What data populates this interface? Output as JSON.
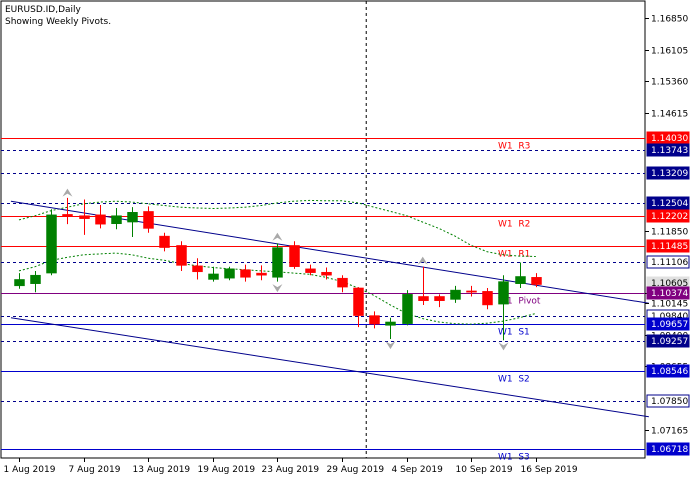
{
  "header": {
    "symbol_line": "EURUSD.ID,Daily",
    "subtitle": "Showing Weekly Pivots."
  },
  "chart_data": {
    "type": "candlestick",
    "symbol": "EURUSD.ID",
    "timeframe": "Daily",
    "price_range": [
      1.065,
      1.1725
    ],
    "y_ticks": [
      {
        "label": "1.16850",
        "value": 1.1685
      },
      {
        "label": "1.16105",
        "value": 1.16105
      },
      {
        "label": "1.15360",
        "value": 1.1536
      },
      {
        "label": "1.14615",
        "value": 1.14615
      },
      {
        "label": "1.11850",
        "value": 1.1185
      },
      {
        "label": "1.10380",
        "value": 1.1038
      },
      {
        "label": "1.10145",
        "value": 1.10145
      },
      {
        "label": "1.09400",
        "value": 1.094
      },
      {
        "label": "1.08655",
        "value": 1.08655
      },
      {
        "label": "1.07165",
        "value": 1.07165
      }
    ],
    "price_tags": [
      {
        "label": "1.14030",
        "value": 1.1403,
        "bg": "#ff0000",
        "fg": "#ffffff"
      },
      {
        "label": "1.13743",
        "value": 1.13743,
        "bg": "#00008b",
        "fg": "#ffffff"
      },
      {
        "label": "1.13209",
        "value": 1.13209,
        "bg": "#00008b",
        "fg": "#ffffff"
      },
      {
        "label": "1.12504",
        "value": 1.12504,
        "bg": "#00008b",
        "fg": "#ffffff"
      },
      {
        "label": "1.12202",
        "value": 1.12202,
        "bg": "#ff0000",
        "fg": "#ffffff"
      },
      {
        "label": "1.11485",
        "value": 1.11485,
        "bg": "#ff0000",
        "fg": "#ffffff"
      },
      {
        "label": "1.11106",
        "value": 1.11106,
        "bg": "#ffffff",
        "fg": "#000000",
        "border": "#00008b"
      },
      {
        "label": "1.10605",
        "value": 1.10605,
        "bg": "#e0e0e0",
        "fg": "#000000"
      },
      {
        "label": "1.10374",
        "value": 1.10374,
        "bg": "#800080",
        "fg": "#ffffff"
      },
      {
        "label": "1.09840",
        "value": 1.0984,
        "bg": "#ffffff",
        "fg": "#000000",
        "border": "#00008b"
      },
      {
        "label": "1.09657",
        "value": 1.09657,
        "bg": "#0000cd",
        "fg": "#ffffff"
      },
      {
        "label": "1.09257",
        "value": 1.09257,
        "bg": "#00008b",
        "fg": "#ffffff"
      },
      {
        "label": "1.08546",
        "value": 1.08546,
        "bg": "#0000cd",
        "fg": "#ffffff"
      },
      {
        "label": "1.07850",
        "value": 1.0785,
        "bg": "#ffffff",
        "fg": "#000000",
        "border": "#00008b"
      },
      {
        "label": "1.06718",
        "value": 1.06718,
        "bg": "#0000cd",
        "fg": "#ffffff"
      }
    ],
    "pivot_levels": [
      {
        "name": "W1  R3",
        "value": 1.1403,
        "color": "#ff0000"
      },
      {
        "name": "W1  R2",
        "value": 1.12202,
        "color": "#ff0000"
      },
      {
        "name": "W1  R1",
        "value": 1.11485,
        "color": "#ff0000"
      },
      {
        "name": "W1  Pivot",
        "value": 1.10374,
        "color": "#800080"
      },
      {
        "name": "W1  S1",
        "value": 1.09657,
        "color": "#0000cd"
      },
      {
        "name": "W1  S2",
        "value": 1.08546,
        "color": "#0000cd"
      },
      {
        "name": "W1  S3",
        "value": 1.06718,
        "color": "#0000cd"
      }
    ],
    "dashed_levels": [
      1.13743,
      1.13209,
      1.12504,
      1.11106,
      1.0984,
      1.09257,
      1.0785
    ],
    "x_labels": [
      {
        "label": "1 Aug 2019",
        "index": 0
      },
      {
        "label": "7 Aug 2019",
        "index": 4
      },
      {
        "label": "13 Aug 2019",
        "index": 8
      },
      {
        "label": "19 Aug 2019",
        "index": 12
      },
      {
        "label": "23 Aug 2019",
        "index": 16
      },
      {
        "label": "29 Aug 2019",
        "index": 20
      },
      {
        "label": "4 Sep 2019",
        "index": 24
      },
      {
        "label": "10 Sep 2019",
        "index": 28
      },
      {
        "label": "16 Sep 2019",
        "index": 32
      }
    ],
    "candles": [
      {
        "o": 1.1055,
        "h": 1.1085,
        "l": 1.1048,
        "c": 1.107
      },
      {
        "o": 1.106,
        "h": 1.109,
        "l": 1.104,
        "c": 1.108
      },
      {
        "o": 1.1085,
        "h": 1.1235,
        "l": 1.108,
        "c": 1.1222
      },
      {
        "o": 1.1223,
        "h": 1.1262,
        "l": 1.12,
        "c": 1.1218
      },
      {
        "o": 1.122,
        "h": 1.1258,
        "l": 1.1175,
        "c": 1.1213
      },
      {
        "o": 1.1222,
        "h": 1.1245,
        "l": 1.119,
        "c": 1.12
      },
      {
        "o": 1.1201,
        "h": 1.1238,
        "l": 1.1188,
        "c": 1.122
      },
      {
        "o": 1.1205,
        "h": 1.124,
        "l": 1.117,
        "c": 1.1228
      },
      {
        "o": 1.123,
        "h": 1.1242,
        "l": 1.118,
        "c": 1.119
      },
      {
        "o": 1.1172,
        "h": 1.118,
        "l": 1.1136,
        "c": 1.1145
      },
      {
        "o": 1.115,
        "h": 1.116,
        "l": 1.109,
        "c": 1.1103
      },
      {
        "o": 1.1102,
        "h": 1.112,
        "l": 1.107,
        "c": 1.1088
      },
      {
        "o": 1.107,
        "h": 1.11,
        "l": 1.1065,
        "c": 1.1083
      },
      {
        "o": 1.1073,
        "h": 1.11,
        "l": 1.1068,
        "c": 1.1095
      },
      {
        "o": 1.1093,
        "h": 1.1105,
        "l": 1.1065,
        "c": 1.1075
      },
      {
        "o": 1.1085,
        "h": 1.1103,
        "l": 1.1068,
        "c": 1.108
      },
      {
        "o": 1.1075,
        "h": 1.1155,
        "l": 1.1065,
        "c": 1.1145
      },
      {
        "o": 1.115,
        "h": 1.116,
        "l": 1.1095,
        "c": 1.11
      },
      {
        "o": 1.1095,
        "h": 1.1105,
        "l": 1.108,
        "c": 1.1086
      },
      {
        "o": 1.1087,
        "h": 1.1098,
        "l": 1.107,
        "c": 1.108
      },
      {
        "o": 1.1073,
        "h": 1.108,
        "l": 1.104,
        "c": 1.1052
      },
      {
        "o": 1.105,
        "h": 1.1052,
        "l": 1.0958,
        "c": 1.0985
      },
      {
        "o": 1.0985,
        "h": 1.0995,
        "l": 1.0955,
        "c": 1.0965
      },
      {
        "o": 1.0962,
        "h": 1.098,
        "l": 1.093,
        "c": 1.097
      },
      {
        "o": 1.0966,
        "h": 1.1045,
        "l": 1.0962,
        "c": 1.1035
      },
      {
        "o": 1.103,
        "h": 1.11,
        "l": 1.101,
        "c": 1.102
      },
      {
        "o": 1.103,
        "h": 1.1035,
        "l": 1.1005,
        "c": 1.102
      },
      {
        "o": 1.1023,
        "h": 1.1055,
        "l": 1.1015,
        "c": 1.1045
      },
      {
        "o": 1.1043,
        "h": 1.1055,
        "l": 1.103,
        "c": 1.104
      },
      {
        "o": 1.1042,
        "h": 1.105,
        "l": 1.1,
        "c": 1.101
      },
      {
        "o": 1.1012,
        "h": 1.108,
        "l": 1.0927,
        "c": 1.1065
      },
      {
        "o": 1.106,
        "h": 1.111,
        "l": 1.105,
        "c": 1.1077
      },
      {
        "o": 1.1075,
        "h": 1.1085,
        "l": 1.1052,
        "c": 1.1058
      }
    ],
    "channel_lines": [
      {
        "from": {
          "index": -0.5,
          "price": 1.1254
        },
        "to": {
          "index": 39.0,
          "price": 1.1014
        },
        "color": "#00008b"
      },
      {
        "from": {
          "index": -0.5,
          "price": 1.098
        },
        "to": {
          "index": 39.0,
          "price": 1.0747
        },
        "color": "#00008b"
      }
    ],
    "envelope_upper": [
      1.121,
      1.122,
      1.1232,
      1.124,
      1.1248,
      1.1252,
      1.1254,
      1.1252,
      1.1248,
      1.1244,
      1.124,
      1.1238,
      1.1237,
      1.1238,
      1.124,
      1.1244,
      1.125,
      1.1254,
      1.1256,
      1.1255,
      1.1255,
      1.125,
      1.124,
      1.123,
      1.122,
      1.1205,
      1.119,
      1.1172,
      1.115,
      1.1135,
      1.1128,
      1.1125,
      1.1124
    ],
    "envelope_lower": [
      1.109,
      1.11,
      1.1115,
      1.1122,
      1.1128,
      1.113,
      1.1132,
      1.1128,
      1.112,
      1.1115,
      1.1108,
      1.1102,
      1.1098,
      1.1095,
      1.1093,
      1.109,
      1.1088,
      1.1085,
      1.1082,
      1.1075,
      1.1065,
      1.105,
      1.1032,
      1.101,
      1.099,
      1.0978,
      1.097,
      1.0966,
      1.0965,
      1.0967,
      1.0972,
      1.098,
      1.099
    ],
    "fractal_arrows": [
      {
        "index": 3,
        "direction": "up",
        "price": 1.1272
      },
      {
        "index": 16,
        "direction": "up",
        "price": 1.1168
      },
      {
        "index": 25,
        "direction": "up",
        "price": 1.1112
      },
      {
        "index": 16,
        "direction": "down",
        "price": 1.1052
      },
      {
        "index": 23,
        "direction": "down",
        "price": 1.0918
      },
      {
        "index": 30,
        "direction": "down",
        "price": 1.0915
      }
    ],
    "period_separator_index": 21.5,
    "colors": {
      "background": "#ffffff",
      "bull_candle": "#008000",
      "bear_candle": "#ff0000",
      "envelope": "#008000",
      "arrow": "#a9a9a9",
      "separator": "#000000"
    }
  }
}
